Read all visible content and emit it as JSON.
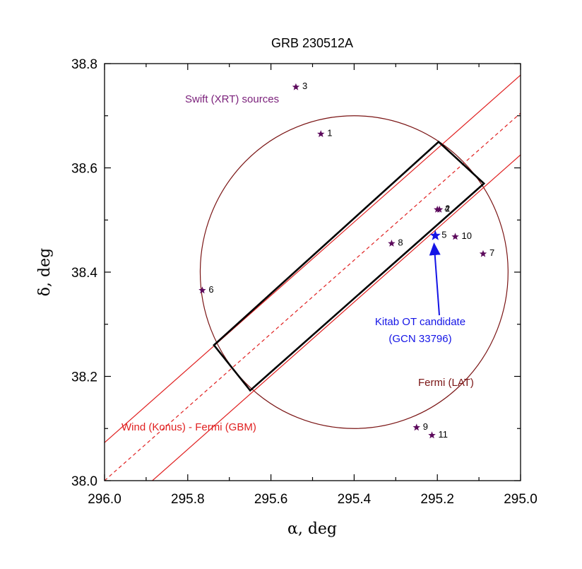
{
  "chart_data": {
    "type": "scatter",
    "title": "GRB 230512A",
    "xlabel": "α, deg",
    "ylabel": "δ, deg",
    "xlim": [
      296.0,
      295.0
    ],
    "ylim": [
      38.0,
      38.8
    ],
    "x_reversed": true,
    "x_ticks": [
      "296.0",
      "295.8",
      "295.6",
      "295.4",
      "295.2",
      "295.0"
    ],
    "y_ticks": [
      "38.0",
      "38.2",
      "38.4",
      "38.6",
      "38.8"
    ],
    "grid": false,
    "series": [
      {
        "name": "Swift (XRT) sources",
        "marker": "star",
        "color": "#5c0a5c",
        "points": [
          {
            "label": "1",
            "x": 295.48,
            "y": 38.665
          },
          {
            "label": "2",
            "x": 295.195,
            "y": 38.52
          },
          {
            "label": "3",
            "x": 295.54,
            "y": 38.755
          },
          {
            "label": "4",
            "x": 295.2,
            "y": 38.52
          },
          {
            "label": "5",
            "x": 295.205,
            "y": 38.47
          },
          {
            "label": "6",
            "x": 295.765,
            "y": 38.365
          },
          {
            "label": "7",
            "x": 295.09,
            "y": 38.435
          },
          {
            "label": "8",
            "x": 295.31,
            "y": 38.455
          },
          {
            "label": "9",
            "x": 295.25,
            "y": 38.102
          },
          {
            "label": "10",
            "x": 295.157,
            "y": 38.468
          },
          {
            "label": "11",
            "x": 295.213,
            "y": 38.087
          }
        ]
      },
      {
        "name": "Kitab OT candidate",
        "marker": "star",
        "color": "#1414e6",
        "points": [
          {
            "x": 295.205,
            "y": 38.47
          }
        ]
      }
    ],
    "regions": {
      "fermi_lat": {
        "label": "Fermi (LAT)",
        "color": "#7a1414",
        "center": [
          295.4,
          38.4
        ],
        "radius_x": 0.37,
        "radius_y": 0.3
      },
      "ipn_annulus": {
        "label": "Wind (Konus) - Fermi (GBM)",
        "color": "#e02020",
        "center_line": [
          [
            296.0,
            38.0
          ],
          [
            295.0,
            38.705
          ]
        ],
        "upper_line": [
          [
            296.0,
            38.073
          ],
          [
            295.0,
            38.778
          ]
        ],
        "lower_line": [
          [
            295.885,
            38.0
          ],
          [
            295.0,
            38.625
          ]
        ]
      },
      "error_box": {
        "color": "#000000",
        "corners": [
          [
            295.65,
            38.173
          ],
          [
            295.088,
            38.57
          ],
          [
            295.197,
            38.65
          ],
          [
            295.737,
            38.26
          ]
        ]
      }
    },
    "annotations": {
      "swift_label": "Swift (XRT) sources",
      "kitab_line1": "Kitab OT candidate",
      "kitab_line2": "(GCN 33796)",
      "fermi_label": "Fermi (LAT)",
      "konus_label": "Wind (Konus) - Fermi (GBM)"
    }
  }
}
